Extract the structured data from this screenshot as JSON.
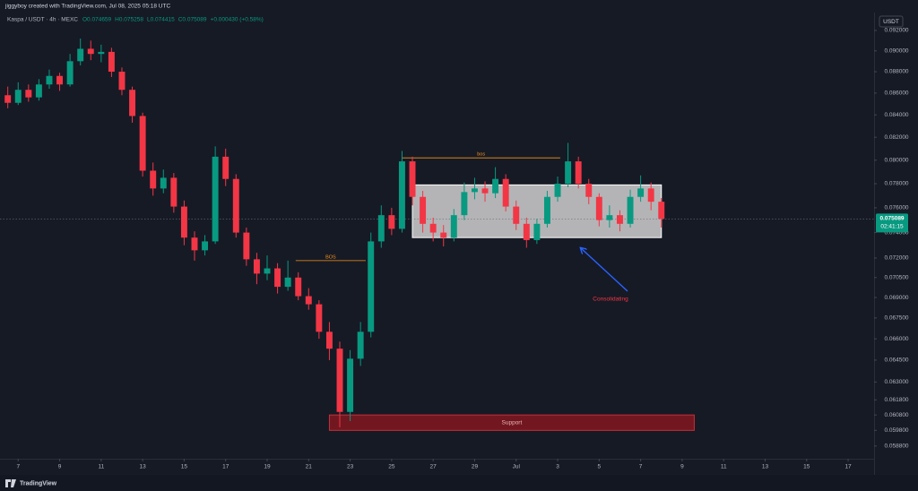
{
  "header": {
    "credit": "jiggyboy created with TradingView.com, Jul 08, 2025 05:18 UTC",
    "symbol": "Kaspa / USDT · 4h · MEXC",
    "ohlc": [
      "O0.074659",
      "H0.075258",
      "L0.074415",
      "C0.075089",
      "+0.000430 (+0.58%)"
    ],
    "currency": "USDT"
  },
  "footer": {
    "brand": "TradingView"
  },
  "chart_data": {
    "type": "candlestick",
    "log": true,
    "grid": false,
    "up_color": "#089981",
    "down_color": "#f23645",
    "xlim": [
      "06-06 03:00",
      "07-18 06:00"
    ],
    "xticks": [
      {
        "value": "06-07",
        "label": "7"
      },
      {
        "value": "06-09",
        "label": "9"
      },
      {
        "value": "06-11",
        "label": "11"
      },
      {
        "value": "06-13",
        "label": "13"
      },
      {
        "value": "06-15",
        "label": "15"
      },
      {
        "value": "06-17",
        "label": "17"
      },
      {
        "value": "06-19",
        "label": "19"
      },
      {
        "value": "06-21",
        "label": "21"
      },
      {
        "value": "06-23",
        "label": "23"
      },
      {
        "value": "06-25",
        "label": "25"
      },
      {
        "value": "06-27",
        "label": "27"
      },
      {
        "value": "06-29",
        "label": "29"
      },
      {
        "value": "07-01",
        "label": "Jul"
      },
      {
        "value": "07-03",
        "label": "3"
      },
      {
        "value": "07-05",
        "label": "5"
      },
      {
        "value": "07-07",
        "label": "7"
      },
      {
        "value": "07-09",
        "label": "9"
      },
      {
        "value": "07-11",
        "label": "11"
      },
      {
        "value": "07-13",
        "label": "13"
      },
      {
        "value": "07-15",
        "label": "15"
      },
      {
        "value": "07-17",
        "label": "17"
      }
    ],
    "ylim": [
      0.058,
      0.0928
    ],
    "yticks": [
      {
        "value": 0.092,
        "label": "0.092000"
      },
      {
        "value": 0.09,
        "label": "0.090000"
      },
      {
        "value": 0.088,
        "label": "0.088000"
      },
      {
        "value": 0.086,
        "label": "0.086000"
      },
      {
        "value": 0.084,
        "label": "0.084000"
      },
      {
        "value": 0.082,
        "label": "0.082000"
      },
      {
        "value": 0.08,
        "label": "0.080000"
      },
      {
        "value": 0.078,
        "label": "0.078000"
      },
      {
        "value": 0.076,
        "label": "0.076000"
      },
      {
        "value": 0.074,
        "label": "0.074000"
      },
      {
        "value": 0.072,
        "label": "0.072000"
      },
      {
        "value": 0.0705,
        "label": "0.070500"
      },
      {
        "value": 0.069,
        "label": "0.069000"
      },
      {
        "value": 0.0675,
        "label": "0.067500"
      },
      {
        "value": 0.066,
        "label": "0.066000"
      },
      {
        "value": 0.0645,
        "label": "0.064500"
      },
      {
        "value": 0.063,
        "label": "0.063000"
      },
      {
        "value": 0.0618,
        "label": "0.061800"
      },
      {
        "value": 0.0608,
        "label": "0.060800"
      },
      {
        "value": 0.0598,
        "label": "0.059800"
      },
      {
        "value": 0.0588,
        "label": "0.058800"
      }
    ],
    "candles": {
      "x": [
        "06-06 12:00",
        "06-07 00:00",
        "06-07 12:00",
        "06-08 00:00",
        "06-08 12:00",
        "06-09 00:00",
        "06-09 12:00",
        "06-10 00:00",
        "06-10 12:00",
        "06-11 00:00",
        "06-11 12:00",
        "06-12 00:00",
        "06-12 12:00",
        "06-13 00:00",
        "06-13 12:00",
        "06-14 00:00",
        "06-14 12:00",
        "06-15 00:00",
        "06-15 12:00",
        "06-16 00:00",
        "06-16 12:00",
        "06-17 00:00",
        "06-17 12:00",
        "06-18 00:00",
        "06-18 12:00",
        "06-19 00:00",
        "06-19 12:00",
        "06-20 00:00",
        "06-20 12:00",
        "06-21 00:00",
        "06-21 12:00",
        "06-22 00:00",
        "06-22 12:00",
        "06-23 00:00",
        "06-23 12:00",
        "06-24 00:00",
        "06-24 12:00",
        "06-25 00:00",
        "06-25 12:00",
        "06-26 00:00",
        "06-26 12:00",
        "06-27 00:00",
        "06-27 12:00",
        "06-28 00:00",
        "06-28 12:00",
        "06-29 00:00",
        "06-29 12:00",
        "06-30 00:00",
        "06-30 12:00",
        "07-01 00:00",
        "07-01 12:00",
        "07-02 00:00",
        "07-02 12:00",
        "07-03 00:00",
        "07-03 12:00",
        "07-04 00:00",
        "07-04 12:00",
        "07-05 00:00",
        "07-05 12:00",
        "07-06 00:00",
        "07-06 12:00",
        "07-07 00:00",
        "07-07 12:00",
        "07-08 00:00"
      ],
      "open": [
        0.0858,
        0.0851,
        0.0863,
        0.0856,
        0.0868,
        0.0876,
        0.0868,
        0.089,
        0.0902,
        0.0897,
        0.0899,
        0.088,
        0.0863,
        0.0839,
        0.0791,
        0.0776,
        0.0785,
        0.0761,
        0.0736,
        0.0726,
        0.0733,
        0.0803,
        0.0784,
        0.074,
        0.0719,
        0.0708,
        0.0712,
        0.0698,
        0.0705,
        0.0691,
        0.0685,
        0.0665,
        0.0653,
        0.061,
        0.0646,
        0.0665,
        0.0733,
        0.0754,
        0.0743,
        0.0799,
        0.0769,
        0.0747,
        0.074,
        0.0736,
        0.0754,
        0.0773,
        0.0776,
        0.0772,
        0.0784,
        0.0761,
        0.0747,
        0.0734,
        0.0747,
        0.0769,
        0.078,
        0.0799,
        0.078,
        0.0769,
        0.075,
        0.0754,
        0.0747,
        0.0769,
        0.0776,
        0.0765
      ],
      "high": [
        0.0866,
        0.087,
        0.0868,
        0.0873,
        0.0882,
        0.0879,
        0.0897,
        0.0912,
        0.091,
        0.0906,
        0.0903,
        0.0884,
        0.0866,
        0.0842,
        0.0798,
        0.0792,
        0.0789,
        0.0766,
        0.0741,
        0.0738,
        0.0812,
        0.081,
        0.0788,
        0.0744,
        0.0724,
        0.0722,
        0.0716,
        0.0718,
        0.0709,
        0.0697,
        0.0688,
        0.0672,
        0.0658,
        0.0652,
        0.0672,
        0.074,
        0.0762,
        0.076,
        0.0808,
        0.0803,
        0.0774,
        0.0752,
        0.0746,
        0.0759,
        0.0781,
        0.0785,
        0.0782,
        0.0794,
        0.0788,
        0.0766,
        0.0752,
        0.0751,
        0.0774,
        0.0786,
        0.0815,
        0.0803,
        0.0784,
        0.0772,
        0.0762,
        0.0758,
        0.0775,
        0.0787,
        0.0781,
        0.0768
      ],
      "low": [
        0.0846,
        0.0849,
        0.0852,
        0.0853,
        0.0864,
        0.0862,
        0.0866,
        0.0886,
        0.0891,
        0.0889,
        0.0875,
        0.0858,
        0.0833,
        0.0786,
        0.077,
        0.0772,
        0.0756,
        0.073,
        0.0718,
        0.0722,
        0.0731,
        0.0778,
        0.0736,
        0.0714,
        0.07,
        0.0703,
        0.0693,
        0.0695,
        0.0688,
        0.0681,
        0.066,
        0.0645,
        0.06,
        0.0604,
        0.0641,
        0.0661,
        0.0728,
        0.0738,
        0.074,
        0.0762,
        0.074,
        0.0733,
        0.0729,
        0.0733,
        0.075,
        0.0767,
        0.0765,
        0.0768,
        0.0757,
        0.0742,
        0.0728,
        0.0731,
        0.0744,
        0.0765,
        0.0777,
        0.0776,
        0.0763,
        0.0745,
        0.0744,
        0.0741,
        0.0744,
        0.0765,
        0.0758,
        0.0744
      ],
      "close": [
        0.0851,
        0.0863,
        0.0856,
        0.0868,
        0.0876,
        0.0868,
        0.089,
        0.0902,
        0.0897,
        0.0899,
        0.088,
        0.0863,
        0.0839,
        0.0791,
        0.0776,
        0.0785,
        0.0761,
        0.0736,
        0.0726,
        0.0733,
        0.0803,
        0.0784,
        0.074,
        0.0719,
        0.0708,
        0.0712,
        0.0698,
        0.0705,
        0.0691,
        0.0685,
        0.0665,
        0.0653,
        0.061,
        0.0646,
        0.0665,
        0.0733,
        0.0754,
        0.0743,
        0.0799,
        0.0769,
        0.0747,
        0.074,
        0.0736,
        0.0754,
        0.0773,
        0.0776,
        0.0772,
        0.0784,
        0.0761,
        0.0747,
        0.0734,
        0.0747,
        0.0769,
        0.078,
        0.0799,
        0.078,
        0.0769,
        0.075,
        0.0754,
        0.0747,
        0.0769,
        0.0776,
        0.0765,
        0.0751
      ]
    },
    "last_price": {
      "value": 0.075089,
      "label": "0.075089",
      "countdown": "02:41:15",
      "color": "#089981"
    },
    "annotations": {
      "levels": [
        {
          "label": "BOS",
          "x": [
            "06-20 09:00",
            "06-23 18:00"
          ],
          "y": 0.0718,
          "color": "#f7931a"
        },
        {
          "label": "bos",
          "x": [
            "06-25 12:00",
            "07-03 03:00"
          ],
          "y": 0.0802,
          "color": "#f7931a"
        }
      ],
      "box": {
        "x": [
          "06-26 00:00",
          "07-08 00:00"
        ],
        "y": [
          0.0736,
          0.0779
        ]
      },
      "zone": {
        "label": "Support",
        "x": [
          "06-22 00:00",
          "07-09 14:00"
        ],
        "y": [
          0.0598,
          0.0608
        ]
      },
      "note": {
        "label": "Consolidating",
        "color": "#f23645"
      }
    }
  }
}
